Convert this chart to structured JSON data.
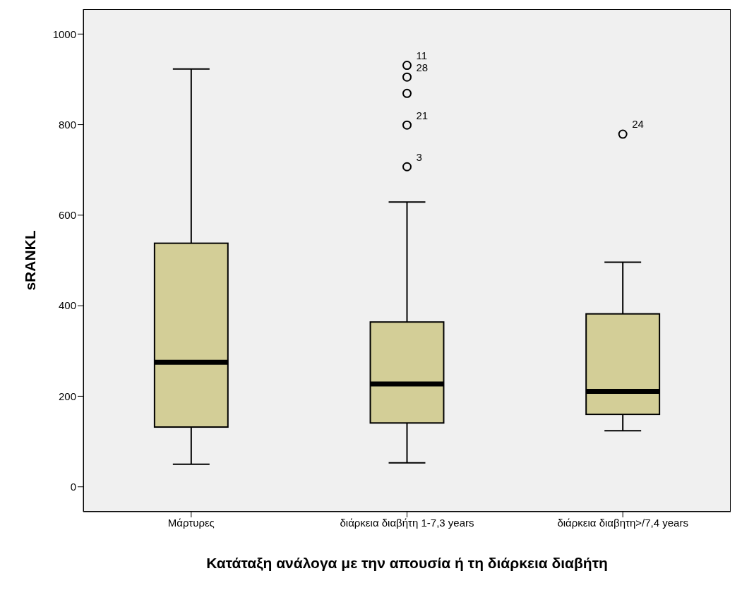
{
  "chart_data": {
    "type": "box",
    "xlabel": "Κατάταξη ανάλογα με την απουσία ή τη διάρκεια διαβήτη",
    "ylabel": "sRANKL",
    "categories": [
      "Μάρτυρες",
      "διάρκεια διαβήτη 1-7,3 years",
      "διάρκεια διαβητη>/7,4 years"
    ],
    "color": "#d3ce97",
    "boxes": [
      {
        "low": 50,
        "q1": 132,
        "median": 275,
        "q3": 538,
        "high": 923
      },
      {
        "low": 53,
        "q1": 141,
        "median": 227,
        "q3": 364,
        "high": 629
      },
      {
        "low": 124,
        "q1": 160,
        "median": 211,
        "q3": 382,
        "high": 496
      }
    ],
    "series": [
      {
        "type": "scatter",
        "color": "#000000",
        "x": [
          "διάρκεια διαβήτη 1-7,3 years",
          "διάρκεια διαβήτη 1-7,3 years",
          "διάρκεια διαβήτη 1-7,3 years",
          "διάρκεια διαβήτη 1-7,3 years",
          "διάρκεια διαβήτη 1-7,3 years",
          "διάρκεια διαβητη>/7,4 years"
        ],
        "values": [
          707,
          799,
          869,
          905,
          931,
          779
        ]
      }
    ],
    "annotations": [
      {
        "text": "11",
        "x": "διάρκεια διαβήτη 1-7,3 years",
        "y": 931
      },
      {
        "text": "28",
        "x": "διάρκεια διαβήτη 1-7,3 years",
        "y": 905
      },
      {
        "text": "21",
        "x": "διάρκεια διαβήτη 1-7,3 years",
        "y": 799
      },
      {
        "text": "3",
        "x": "διάρκεια διαβήτη 1-7,3 years",
        "y": 707
      },
      {
        "text": "24",
        "x": "διάρκεια διαβητη>/7,4 years",
        "y": 779
      }
    ],
    "ylim": [
      -55,
      1055
    ],
    "yticks": [
      0,
      200,
      400,
      600,
      800,
      1000
    ],
    "grid": false,
    "marker": "circle"
  }
}
